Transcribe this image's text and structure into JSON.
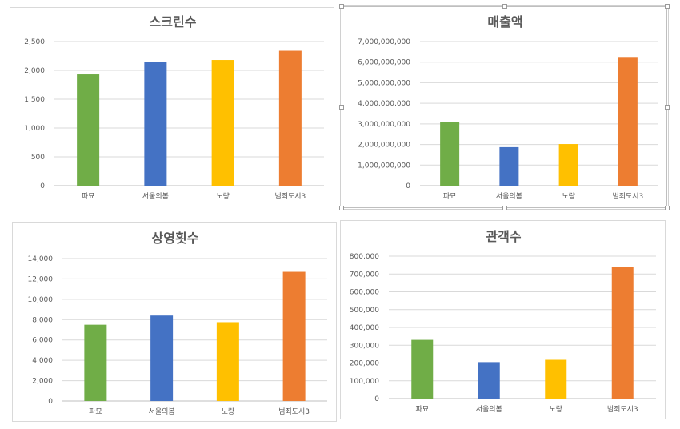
{
  "chart_data": [
    {
      "type": "bar",
      "title": "스크린수",
      "categories": [
        "파묘",
        "서울의봄",
        "노량",
        "범죄도시3"
      ],
      "values": [
        1930,
        2140,
        2180,
        2340
      ],
      "ylim": [
        0,
        2500
      ],
      "yticks": [
        0,
        500,
        1000,
        1500,
        2000,
        2500
      ],
      "yticklabels": [
        "0",
        "500",
        "1,000",
        "1,500",
        "2,000",
        "2,500"
      ],
      "colors": [
        "#70AD47",
        "#4472C4",
        "#FFC000",
        "#ED7D31"
      ],
      "grid": true
    },
    {
      "type": "bar",
      "title": "매출액",
      "categories": [
        "파묘",
        "서울의봄",
        "노량",
        "범죄도시3"
      ],
      "values": [
        3080000000,
        1870000000,
        2020000000,
        6250000000
      ],
      "ylim": [
        0,
        7000000000
      ],
      "yticks": [
        0,
        1000000000,
        2000000000,
        3000000000,
        4000000000,
        5000000000,
        6000000000,
        7000000000
      ],
      "yticklabels": [
        "0",
        "1,000,000,000",
        "2,000,000,000",
        "3,000,000,000",
        "4,000,000,000",
        "5,000,000,000",
        "6,000,000,000",
        "7,000,000,000"
      ],
      "colors": [
        "#70AD47",
        "#4472C4",
        "#FFC000",
        "#ED7D31"
      ],
      "grid": true
    },
    {
      "type": "bar",
      "title": "상영횟수",
      "categories": [
        "파묘",
        "서울의봄",
        "노량",
        "범죄도시3"
      ],
      "values": [
        7500,
        8400,
        7750,
        12700
      ],
      "ylim": [
        0,
        14000
      ],
      "yticks": [
        0,
        2000,
        4000,
        6000,
        8000,
        10000,
        12000,
        14000
      ],
      "yticklabels": [
        "0",
        "2,000",
        "4,000",
        "6,000",
        "8,000",
        "10,000",
        "12,000",
        "14,000"
      ],
      "colors": [
        "#70AD47",
        "#4472C4",
        "#FFC000",
        "#ED7D31"
      ],
      "grid": true
    },
    {
      "type": "bar",
      "title": "관객수",
      "categories": [
        "파묘",
        "서울의봄",
        "노량",
        "범죄도시3"
      ],
      "values": [
        330000,
        205000,
        218000,
        740000
      ],
      "ylim": [
        0,
        800000
      ],
      "yticks": [
        0,
        100000,
        200000,
        300000,
        400000,
        500000,
        600000,
        700000,
        800000
      ],
      "yticklabels": [
        "0",
        "100,000",
        "200,000",
        "300,000",
        "400,000",
        "500,000",
        "600,000",
        "700,000",
        "800,000"
      ],
      "colors": [
        "#70AD47",
        "#4472C4",
        "#FFC000",
        "#ED7D31"
      ],
      "grid": true
    }
  ]
}
